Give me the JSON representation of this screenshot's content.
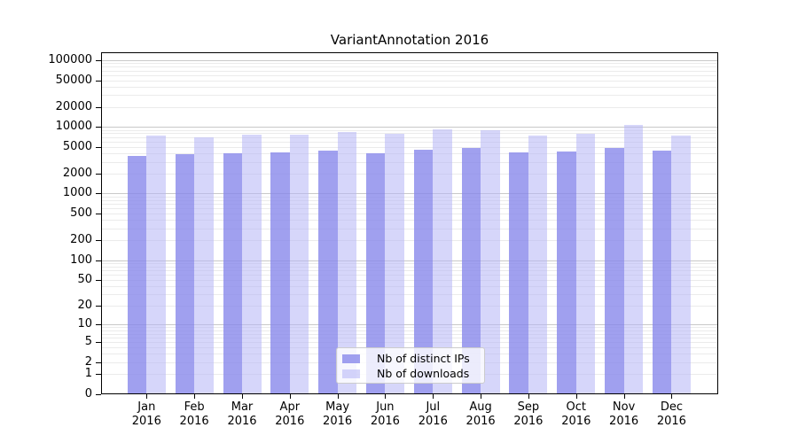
{
  "title": "VariantAnnotation 2016",
  "chart_data": {
    "type": "bar",
    "title": "VariantAnnotation 2016",
    "y_scale": "log10(1+y)",
    "ylim": [
      0,
      100000
    ],
    "grid": true,
    "legend_position": "bottom-center",
    "categories": [
      "Jan",
      "Feb",
      "Mar",
      "Apr",
      "May",
      "Jun",
      "Jul",
      "Aug",
      "Sep",
      "Oct",
      "Nov",
      "Dec"
    ],
    "category_year": "2016",
    "y_ticks": [
      100000,
      50000,
      20000,
      10000,
      5000,
      2000,
      1000,
      500,
      200,
      100,
      50,
      20,
      10,
      5,
      2,
      1,
      0
    ],
    "series": [
      {
        "name": "Nb of distinct IPs",
        "color": "rgba(136,136,235,0.8)",
        "values": [
          3650,
          3900,
          4050,
          4200,
          4400,
          4000,
          4550,
          4800,
          4150,
          4250,
          4900,
          4350
        ]
      },
      {
        "name": "Nb of downloads",
        "color": "rgba(180,180,245,0.55)",
        "values": [
          7350,
          6900,
          7600,
          7700,
          8500,
          7800,
          9200,
          9000,
          7500,
          7800,
          10800,
          7400
        ]
      }
    ]
  },
  "colors": {
    "grid_major": "#c9c9c9",
    "grid_minor": "#ebebeb",
    "axis": "#000000",
    "background": "#ffffff",
    "legend_border": "#cccccc"
  }
}
